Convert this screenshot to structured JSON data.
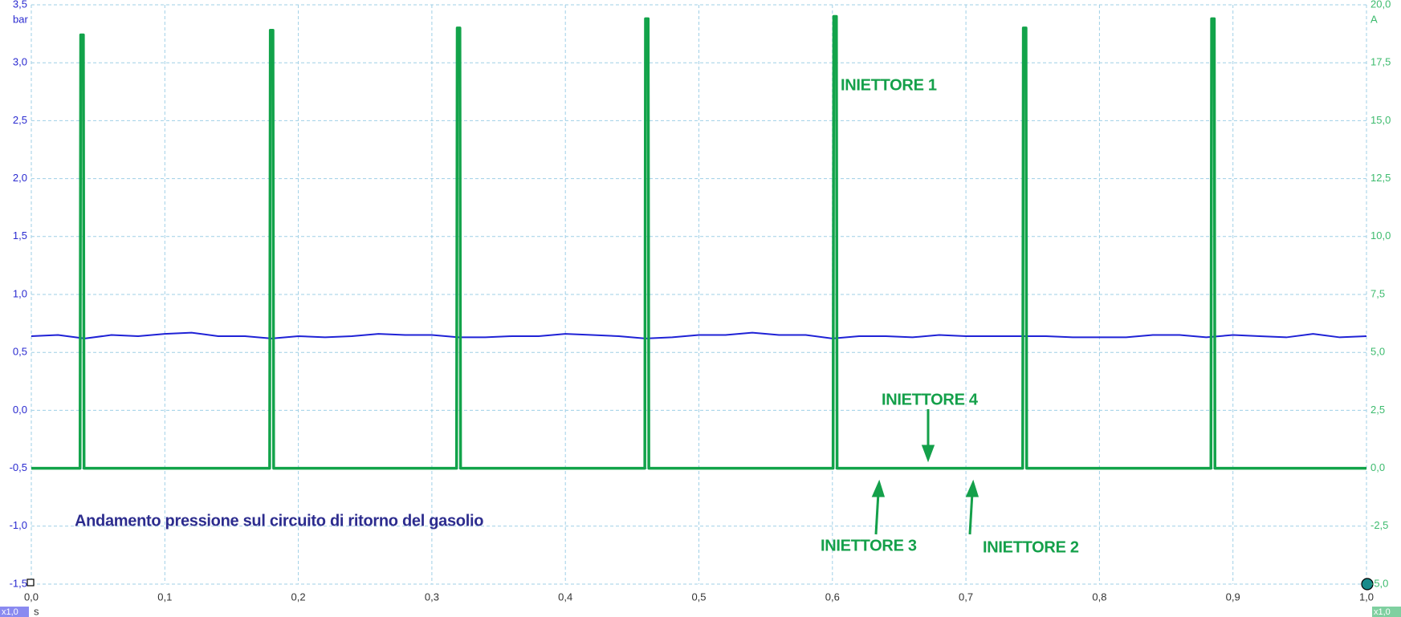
{
  "chart_data": {
    "type": "line",
    "xlabel": "s",
    "ylabel": "bar",
    "y2label": "A",
    "zoom_labels": [
      "x1,0",
      "x1,0"
    ],
    "grid": true,
    "xlim": [
      0,
      1
    ],
    "ylim": [
      -1.5,
      3.5
    ],
    "y2lim": [
      -5,
      20
    ],
    "xticks": [
      {
        "value": 0,
        "label": "0,0"
      },
      {
        "value": 0.1,
        "label": "0,1"
      },
      {
        "value": 0.2,
        "label": "0,2"
      },
      {
        "value": 0.3,
        "label": "0,3"
      },
      {
        "value": 0.4,
        "label": "0,4"
      },
      {
        "value": 0.5,
        "label": "0,5"
      },
      {
        "value": 0.6,
        "label": "0,6"
      },
      {
        "value": 0.7,
        "label": "0,7"
      },
      {
        "value": 0.8,
        "label": "0,8"
      },
      {
        "value": 0.9,
        "label": "0,9"
      },
      {
        "value": 1,
        "label": "1,0"
      }
    ],
    "yticks": [
      {
        "value": -1.5,
        "label": "-1,5"
      },
      {
        "value": -1,
        "label": "-1,0"
      },
      {
        "value": -0.5,
        "label": "-0,5"
      },
      {
        "value": 0,
        "label": "0,0"
      },
      {
        "value": 0.5,
        "label": "0,5"
      },
      {
        "value": 1,
        "label": "1,0"
      },
      {
        "value": 1.5,
        "label": "1,5"
      },
      {
        "value": 2,
        "label": "2,0"
      },
      {
        "value": 2.5,
        "label": "2,5"
      },
      {
        "value": 3,
        "label": "3,0"
      },
      {
        "value": 3.5,
        "label": "3,5"
      }
    ],
    "y2ticks": [
      {
        "value": -5,
        "label": "-5,0"
      },
      {
        "value": -2.5,
        "label": "-2,5"
      },
      {
        "value": 0,
        "label": "0,0"
      },
      {
        "value": 2.5,
        "label": "2,5"
      },
      {
        "value": 5,
        "label": "5,0"
      },
      {
        "value": 7.5,
        "label": "7,5"
      },
      {
        "value": 10,
        "label": "10,0"
      },
      {
        "value": 12.5,
        "label": "12,5"
      },
      {
        "value": 15,
        "label": "15,0"
      },
      {
        "value": 17.5,
        "label": "17,5"
      },
      {
        "value": 20,
        "label": "20,0"
      }
    ],
    "series": [
      {
        "color": "#1f22d6",
        "x": [
          0,
          0.02,
          0.04,
          0.06,
          0.08,
          0.1,
          0.12,
          0.14,
          0.16,
          0.18,
          0.2,
          0.22,
          0.24,
          0.26,
          0.28,
          0.3,
          0.32,
          0.34,
          0.36,
          0.38,
          0.4,
          0.42,
          0.44,
          0.46,
          0.48,
          0.5,
          0.52,
          0.54,
          0.56,
          0.58,
          0.6,
          0.62,
          0.64,
          0.66,
          0.68,
          0.7,
          0.72,
          0.74,
          0.76,
          0.78,
          0.8,
          0.82,
          0.84,
          0.86,
          0.88,
          0.9,
          0.92,
          0.94,
          0.96,
          0.98,
          1
        ],
        "values": [
          0.64,
          0.65,
          0.62,
          0.65,
          0.64,
          0.66,
          0.67,
          0.64,
          0.64,
          0.62,
          0.64,
          0.63,
          0.64,
          0.66,
          0.65,
          0.65,
          0.63,
          0.63,
          0.64,
          0.64,
          0.66,
          0.65,
          0.64,
          0.62,
          0.63,
          0.65,
          0.65,
          0.67,
          0.65,
          0.65,
          0.62,
          0.64,
          0.64,
          0.63,
          0.65,
          0.64,
          0.64,
          0.64,
          0.64,
          0.63,
          0.63,
          0.63,
          0.65,
          0.65,
          0.63,
          0.65,
          0.64,
          0.63,
          0.66,
          0.63,
          0.64
        ]
      },
      {
        "color": "#12a34a",
        "axis": "y2",
        "x": [
          0,
          0.0365,
          0.037,
          0.039,
          0.0395,
          0.1785,
          0.179,
          0.181,
          0.1815,
          0.3185,
          0.319,
          0.321,
          0.3215,
          0.4595,
          0.46,
          0.462,
          0.4625,
          0.6005,
          0.601,
          0.603,
          0.6035,
          0.7425,
          0.743,
          0.745,
          0.7455,
          0.8835,
          0.884,
          0.886,
          0.8865,
          1
        ],
        "values": [
          0,
          0,
          18.7,
          18.7,
          0,
          0,
          18.9,
          18.9,
          0,
          0,
          19.0,
          19.0,
          0,
          0,
          19.4,
          19.4,
          0,
          0,
          19.5,
          19.5,
          0,
          0,
          19.0,
          19.0,
          0,
          0,
          19.4,
          19.4,
          0,
          0
        ]
      }
    ],
    "annotations": [
      "INIETTORE 1",
      "INIETTORE 4",
      "INIETTORE 3",
      "INIETTORE 2",
      "Andamento pressione sul circuito di ritorno del gasolio"
    ]
  }
}
